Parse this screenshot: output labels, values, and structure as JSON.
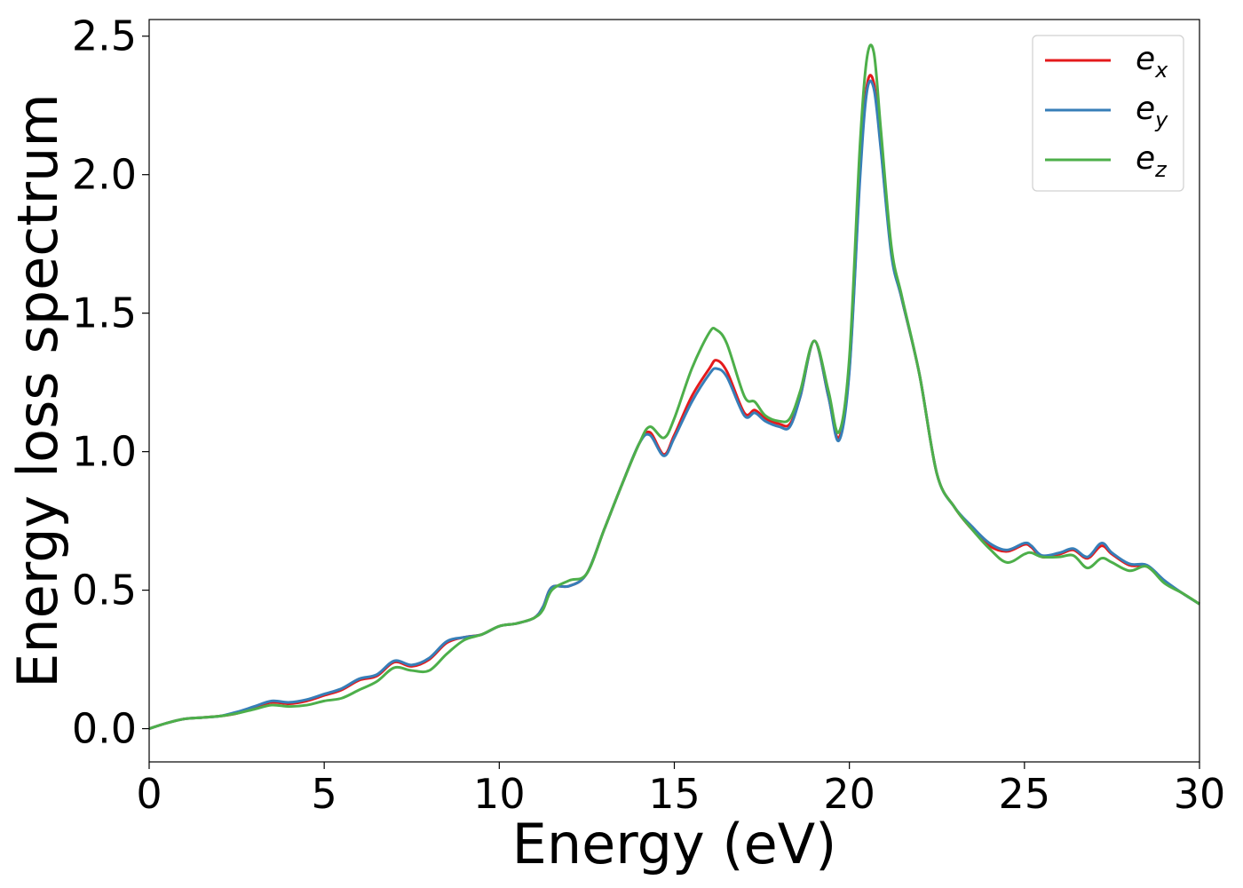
{
  "chart_data": {
    "type": "line",
    "title": "",
    "xlabel": "Energy (eV)",
    "ylabel": "Energy loss spectrum",
    "xlim": [
      0,
      30
    ],
    "ylim": [
      -0.12,
      2.56
    ],
    "xticks": [
      0,
      5,
      10,
      15,
      20,
      25,
      30
    ],
    "xtick_labels": [
      "0",
      "5",
      "10",
      "15",
      "20",
      "25",
      "30"
    ],
    "yticks": [
      0.0,
      0.5,
      1.0,
      1.5,
      2.0,
      2.5
    ],
    "ytick_labels": [
      "0.0",
      "0.5",
      "1.0",
      "1.5",
      "2.0",
      "2.5"
    ],
    "grid": false,
    "legend_position": "top-right",
    "x": [
      0,
      0.5,
      1,
      1.5,
      2,
      2.5,
      3,
      3.5,
      4,
      4.5,
      5,
      5.5,
      6,
      6.5,
      7,
      7.5,
      8,
      8.5,
      9,
      9.5,
      10,
      10.5,
      11,
      11.25,
      11.5,
      12,
      12.5,
      13,
      13.5,
      14,
      14.3,
      14.7,
      15,
      15.5,
      16,
      16.2,
      16.5,
      17,
      17.3,
      17.6,
      18,
      18.3,
      18.6,
      19,
      19.4,
      19.7,
      20,
      20.3,
      20.5,
      20.7,
      20.9,
      21.2,
      21.5,
      22,
      22.5,
      23,
      23.5,
      24,
      24.5,
      25,
      25.2,
      25.5,
      26,
      26.4,
      26.8,
      27.2,
      27.5,
      28,
      28.5,
      29,
      29.5,
      30
    ],
    "series": [
      {
        "name": "e",
        "subscript": "x",
        "color": "#e41a1c",
        "values": [
          0,
          0.02,
          0.035,
          0.04,
          0.045,
          0.055,
          0.075,
          0.095,
          0.09,
          0.1,
          0.12,
          0.14,
          0.175,
          0.19,
          0.24,
          0.225,
          0.25,
          0.31,
          0.33,
          0.34,
          0.37,
          0.38,
          0.4,
          0.44,
          0.51,
          0.515,
          0.56,
          0.72,
          0.88,
          1.03,
          1.07,
          0.99,
          1.06,
          1.2,
          1.3,
          1.33,
          1.29,
          1.14,
          1.15,
          1.12,
          1.1,
          1.1,
          1.2,
          1.4,
          1.2,
          1.05,
          1.3,
          2.0,
          2.32,
          2.33,
          2.1,
          1.72,
          1.55,
          1.28,
          0.92,
          0.8,
          0.72,
          0.66,
          0.64,
          0.665,
          0.655,
          0.62,
          0.63,
          0.645,
          0.615,
          0.66,
          0.63,
          0.59,
          0.585,
          0.53,
          0.49,
          0.45
        ]
      },
      {
        "name": "e",
        "subscript": "y",
        "color": "#377eb8",
        "values": [
          0,
          0.02,
          0.035,
          0.04,
          0.045,
          0.06,
          0.08,
          0.1,
          0.095,
          0.105,
          0.125,
          0.145,
          0.18,
          0.195,
          0.245,
          0.23,
          0.255,
          0.315,
          0.33,
          0.34,
          0.37,
          0.38,
          0.4,
          0.44,
          0.51,
          0.515,
          0.56,
          0.72,
          0.88,
          1.03,
          1.06,
          0.985,
          1.05,
          1.18,
          1.28,
          1.3,
          1.27,
          1.13,
          1.14,
          1.11,
          1.09,
          1.09,
          1.2,
          1.4,
          1.2,
          1.04,
          1.29,
          1.98,
          2.3,
          2.31,
          2.09,
          1.71,
          1.55,
          1.28,
          0.92,
          0.8,
          0.73,
          0.67,
          0.645,
          0.67,
          0.66,
          0.625,
          0.635,
          0.65,
          0.62,
          0.67,
          0.635,
          0.595,
          0.59,
          0.535,
          0.49,
          0.45
        ]
      },
      {
        "name": "e",
        "subscript": "z",
        "color": "#4daf4a",
        "values": [
          0,
          0.02,
          0.035,
          0.04,
          0.045,
          0.055,
          0.07,
          0.085,
          0.08,
          0.085,
          0.1,
          0.11,
          0.14,
          0.17,
          0.22,
          0.21,
          0.21,
          0.27,
          0.32,
          0.34,
          0.37,
          0.38,
          0.4,
          0.43,
          0.5,
          0.535,
          0.56,
          0.72,
          0.88,
          1.03,
          1.09,
          1.05,
          1.12,
          1.3,
          1.43,
          1.44,
          1.39,
          1.2,
          1.18,
          1.13,
          1.11,
          1.12,
          1.22,
          1.4,
          1.22,
          1.07,
          1.34,
          2.1,
          2.42,
          2.44,
          2.16,
          1.74,
          1.56,
          1.28,
          0.92,
          0.8,
          0.72,
          0.65,
          0.6,
          0.63,
          0.635,
          0.62,
          0.62,
          0.625,
          0.58,
          0.615,
          0.6,
          0.57,
          0.585,
          0.525,
          0.49,
          0.45
        ]
      }
    ]
  }
}
